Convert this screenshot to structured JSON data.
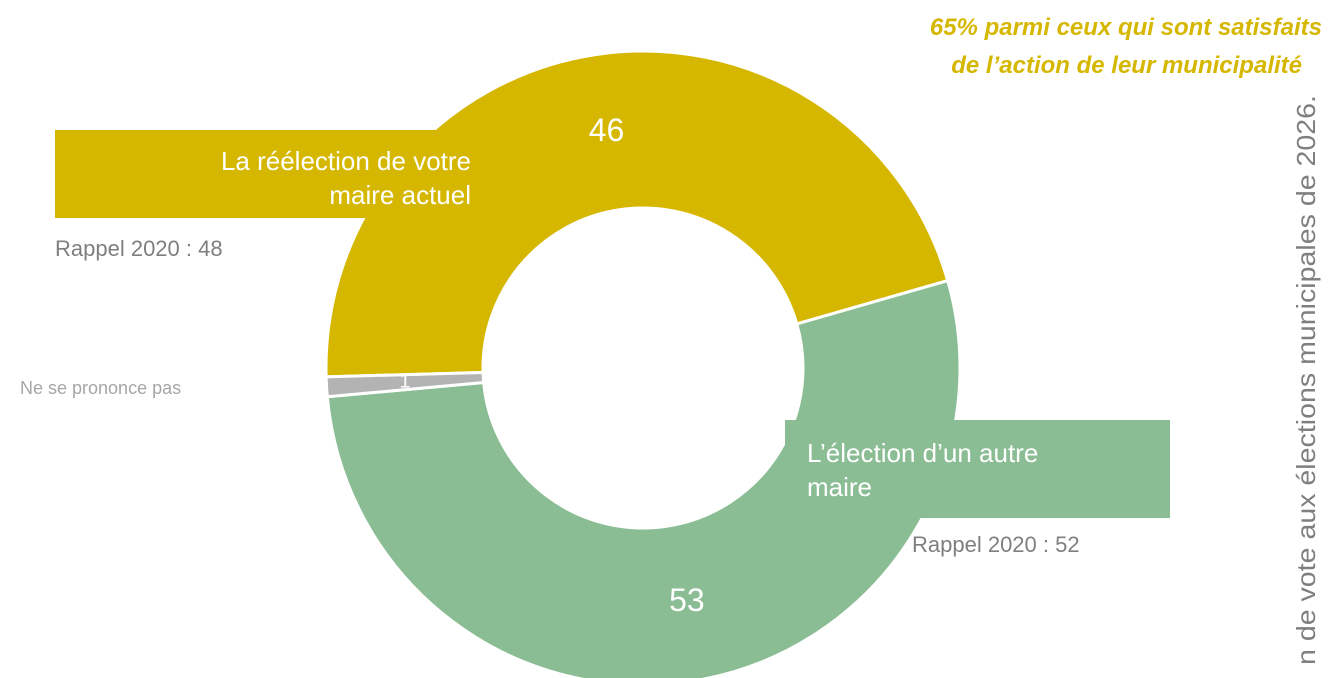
{
  "chart_data": {
    "type": "donut",
    "categories": [
      "La réélection de votre maire actuel",
      "L’élection d’un autre maire",
      "Ne se prononce pas"
    ],
    "values": [
      46,
      53,
      1
    ],
    "colors": [
      "#d6b700",
      "#8abd93",
      "#b3b3b3"
    ],
    "annotations": [
      "Rappel 2020 : 48",
      "Rappel 2020 : 52"
    ],
    "note": [
      "65% parmi ceux qui sont satisfaits",
      "de l’action de leur municipalité"
    ],
    "side_text": "n de vote aux élections municipales de 2026."
  }
}
